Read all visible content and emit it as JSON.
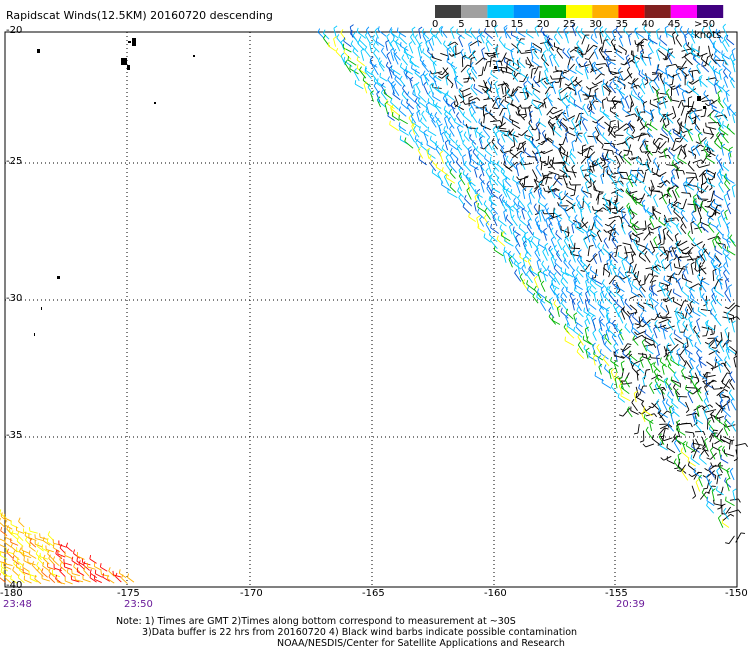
{
  "title": "Rapidscat Winds(12.5KM) 20160720 descending",
  "legend": {
    "labels": [
      "0",
      "5",
      "10",
      "15",
      "20",
      "25",
      "30",
      "35",
      "40",
      "45",
      ">50 knots"
    ],
    "colors": [
      "#3f3f3f",
      "#a0a0a0",
      "#00c8ff",
      "#0090ff",
      "#00b400",
      "#ffff00",
      "#ffb000",
      "#ff0000",
      "#802020",
      "#ff00ff",
      "#400080"
    ]
  },
  "axes": {
    "lon_labels": [
      "-180",
      "-175",
      "-170",
      "-165",
      "-160",
      "-155",
      "-150"
    ],
    "lat_labels": [
      "-20",
      "-25",
      "-30",
      "-35",
      "-40"
    ],
    "grid": true
  },
  "times": [
    "23:48",
    "23:50",
    "20:39"
  ],
  "notes": [
    "Note: 1) Times are GMT 2)Times along bottom correspond to measurement at ~30S",
    "3)Data buffer is 22 hrs from 20160720 4) Black wind barbs indicate possible contamination",
    "NOAA/NESDIS/Center for Satellite Applications and Research"
  ],
  "swaths": [
    {
      "name": "east-swath",
      "dominant_speed": "10-20 knots"
    },
    {
      "name": "southwest-corner-swath",
      "dominant_speed": "25-35 knots"
    }
  ]
}
